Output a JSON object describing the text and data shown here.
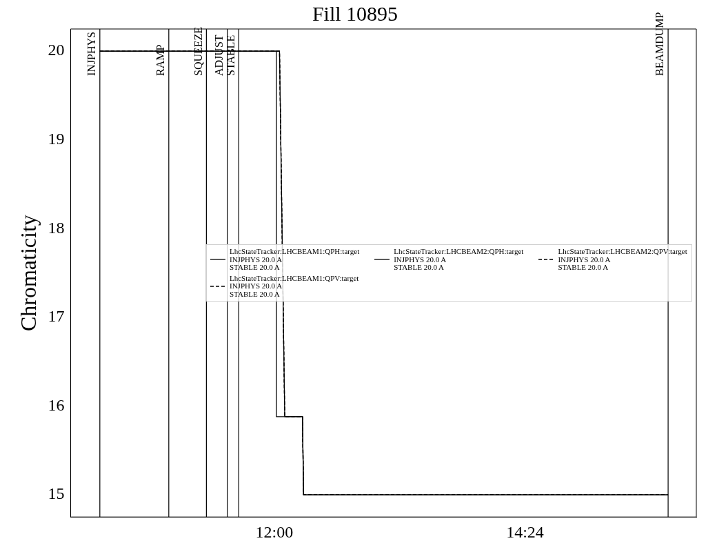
{
  "chart_data": {
    "type": "line",
    "title": "Fill 10895",
    "ylabel": "Chromaticity",
    "xlim": [
      10.05,
      16.04
    ],
    "xticks": [
      {
        "value": 12,
        "label": "12:00"
      },
      {
        "value": 14.4,
        "label": "14:24"
      }
    ],
    "ylim": [
      14.75,
      20.25
    ],
    "yticks": [
      15,
      16,
      17,
      18,
      19,
      20
    ],
    "grid": false,
    "legend": "center right",
    "marker": "none",
    "series": [
      {
        "name": "LhcStateTracker:LHCBEAM1:QPH:target\nINJPHYS 20.0 A\nSTABLE 20.0 A",
        "color": "#000000",
        "line_style": "solid",
        "x": [
          10.33,
          12.02,
          12.02,
          12.1,
          12.27,
          12.28,
          15.77
        ],
        "values": [
          20,
          20,
          15.88,
          15.88,
          15.88,
          15,
          15
        ]
      },
      {
        "name": "LhcStateTracker:LHCBEAM1:QPV:target\nINJPHYS 20.0 A\nSTABLE 20.0 A",
        "color": "#000000",
        "line_style": "dashed",
        "x": [
          10.33,
          12.05,
          12.1,
          12.27,
          12.28,
          15.77
        ],
        "values": [
          20,
          20,
          15.88,
          15.88,
          15,
          15
        ]
      },
      {
        "name": "LhcStateTracker:LHCBEAM2:QPH:target\nINJPHYS 20.0 A\nSTABLE 20.0 A",
        "color": "#000000",
        "line_style": "solid",
        "x": [
          10.33,
          12.05,
          12.1,
          12.27,
          12.28,
          15.77
        ],
        "values": [
          20,
          20,
          15.88,
          15.88,
          15,
          15
        ]
      },
      {
        "name": "LhcStateTracker:LHCBEAM2:QPV:target\nINJPHYS 20.0 A\nSTABLE 20.0 A",
        "color": "#000000",
        "line_style": "dashed",
        "x": [
          10.33,
          12.05,
          12.1,
          12.27,
          12.28,
          15.77
        ],
        "values": [
          20,
          20,
          15.88,
          15.88,
          15,
          15
        ]
      }
    ],
    "ref_lines": [
      {
        "axis": "x",
        "value": 10.33,
        "label": "INJPHYS",
        "color": "#000000"
      },
      {
        "axis": "x",
        "value": 10.99,
        "label": "RAMP",
        "color": "#000000"
      },
      {
        "axis": "x",
        "value": 11.35,
        "label": "SQUEEZE",
        "color": "#000000"
      },
      {
        "axis": "x",
        "value": 11.55,
        "label": "ADJUST",
        "color": "#000000"
      },
      {
        "axis": "x",
        "value": 11.66,
        "label": "STABLE",
        "color": "#000000"
      },
      {
        "axis": "x",
        "value": 15.77,
        "label": "BEAMDUMP",
        "color": "#000000"
      }
    ]
  }
}
